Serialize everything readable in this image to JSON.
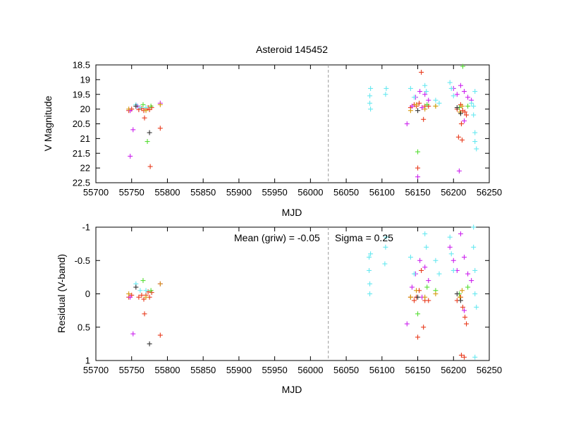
{
  "chart_data": [
    {
      "type": "scatter",
      "title": "Asteroid 145452",
      "xlabel": "MJD",
      "ylabel": "V Magnitude",
      "xlim": [
        55700,
        56250
      ],
      "ylim": [
        18.5,
        22.5
      ],
      "y_inverted": true,
      "xticks": [
        55700,
        55750,
        55800,
        55850,
        55900,
        55950,
        56000,
        56050,
        56100,
        56150,
        56200,
        56250
      ],
      "xtick_labels": [
        "55700",
        "55750",
        "55800",
        "55850",
        "55900",
        "55950",
        "56000",
        "56050",
        "56100",
        "56150",
        "56200",
        "56250"
      ],
      "yticks": [
        18.5,
        19,
        19.5,
        20,
        20.5,
        21,
        21.5,
        22,
        22.5
      ],
      "ytick_labels": [
        "18.5",
        "19",
        "19.5",
        "20",
        "20.5",
        "21",
        "21.5",
        "22",
        "22.5"
      ],
      "vertical_line": 56025,
      "series": [
        {
          "color": "#e83a1c",
          "points": [
            [
              55746,
              20.05
            ],
            [
              55750,
              20.0
            ],
            [
              55760,
              20.02
            ],
            [
              55764,
              19.98
            ],
            [
              55767,
              20.05
            ],
            [
              55770,
              20.0
            ],
            [
              55773,
              19.95
            ],
            [
              55775,
              20.02
            ],
            [
              55778,
              19.95
            ],
            [
              55768,
              20.3
            ],
            [
              55790,
              20.65
            ],
            [
              55776,
              21.95
            ],
            [
              56140,
              19.95
            ],
            [
              56145,
              19.85
            ],
            [
              56148,
              19.9
            ],
            [
              56152,
              19.8
            ],
            [
              56155,
              18.75
            ],
            [
              56160,
              19.9
            ],
            [
              56165,
              19.9
            ],
            [
              56158,
              20.35
            ],
            [
              56150,
              22.0
            ],
            [
              56205,
              20.0
            ],
            [
              56210,
              19.85
            ],
            [
              56213,
              20.05
            ],
            [
              56216,
              20.1
            ],
            [
              56218,
              20.2
            ],
            [
              56211,
              20.5
            ],
            [
              56207,
              20.95
            ],
            [
              56212,
              21.05
            ]
          ]
        },
        {
          "color": "#cc22ee",
          "points": [
            [
              55748,
              20.05
            ],
            [
              55752,
              20.7
            ],
            [
              55748,
              21.6
            ],
            [
              55758,
              19.9
            ],
            [
              55790,
              19.8
            ],
            [
              56135,
              20.5
            ],
            [
              56142,
              19.9
            ],
            [
              56147,
              19.6
            ],
            [
              56153,
              19.4
            ],
            [
              56156,
              19.95
            ],
            [
              56160,
              19.5
            ],
            [
              56165,
              19.7
            ],
            [
              56150,
              22.3
            ],
            [
              56200,
              19.3
            ],
            [
              56205,
              19.5
            ],
            [
              56210,
              19.2
            ],
            [
              56215,
              19.4
            ],
            [
              56220,
              19.6
            ],
            [
              56225,
              19.7
            ],
            [
              56208,
              22.1
            ],
            [
              56215,
              20.4
            ]
          ]
        },
        {
          "color": "#55dd33",
          "points": [
            [
              55766,
              19.85
            ],
            [
              55772,
              21.1
            ],
            [
              55777,
              19.9
            ],
            [
              56150,
              21.45
            ],
            [
              56163,
              19.85
            ],
            [
              56175,
              19.9
            ],
            [
              56213,
              18.55
            ],
            [
              56208,
              19.95
            ],
            [
              56220,
              19.9
            ]
          ]
        },
        {
          "color": "#66e8f0",
          "points": [
            [
              55756,
              19.85
            ],
            [
              55762,
              19.95
            ],
            [
              55770,
              19.95
            ],
            [
              56083,
              19.55
            ],
            [
              56083,
              19.8
            ],
            [
              56084,
              20.0
            ],
            [
              56084,
              19.3
            ],
            [
              56105,
              19.5
            ],
            [
              56106,
              19.3
            ],
            [
              56140,
              19.3
            ],
            [
              56145,
              19.6
            ],
            [
              56160,
              19.2
            ],
            [
              56162,
              19.4
            ],
            [
              56175,
              19.7
            ],
            [
              56180,
              19.8
            ],
            [
              56195,
              19.1
            ],
            [
              56197,
              19.3
            ],
            [
              56200,
              19.55
            ],
            [
              56225,
              19.8
            ],
            [
              56228,
              19.9
            ],
            [
              56228,
              20.2
            ],
            [
              56230,
              20.8
            ],
            [
              56230,
              21.1
            ],
            [
              56232,
              21.35
            ],
            [
              56230,
              19.4
            ]
          ]
        },
        {
          "color": "#d69a10",
          "points": [
            [
              55746,
              20.0
            ],
            [
              55770,
              20.05
            ],
            [
              55790,
              19.85
            ],
            [
              56140,
              20.05
            ],
            [
              56148,
              19.85
            ],
            [
              56160,
              20.0
            ],
            [
              56175,
              19.9
            ],
            [
              56209,
              20.1
            ],
            [
              56212,
              19.9
            ]
          ]
        },
        {
          "color": "#333333",
          "points": [
            [
              55775,
              20.8
            ],
            [
              55756,
              19.9
            ],
            [
              56150,
              20.05
            ],
            [
              56205,
              19.95
            ],
            [
              56210,
              20.15
            ]
          ]
        }
      ]
    },
    {
      "type": "scatter",
      "title": "",
      "xlabel": "MJD",
      "ylabel": "Residual (V-band)",
      "xlim": [
        55700,
        56250
      ],
      "ylim": [
        -1,
        1
      ],
      "y_inverted": true,
      "xticks": [
        55700,
        55750,
        55800,
        55850,
        55900,
        55950,
        56000,
        56050,
        56100,
        56150,
        56200,
        56250
      ],
      "xtick_labels": [
        "55700",
        "55750",
        "55800",
        "55850",
        "55900",
        "55950",
        "56000",
        "56050",
        "56100",
        "56150",
        "56200",
        "56250"
      ],
      "yticks": [
        -1,
        -0.5,
        0,
        0.5,
        1
      ],
      "ytick_labels": [
        "-1",
        "-0.5",
        "0",
        "0.5",
        "1"
      ],
      "vertical_line": 56025,
      "annotations": {
        "mean": "Mean (griw) = -0.05",
        "sigma": "Sigma =  0.25"
      },
      "series": [
        {
          "color": "#e83a1c",
          "points": [
            [
              55746,
              0.05
            ],
            [
              55750,
              0.02
            ],
            [
              55760,
              0.05
            ],
            [
              55764,
              0.02
            ],
            [
              55767,
              0.08
            ],
            [
              55770,
              0.02
            ],
            [
              55773,
              -0.03
            ],
            [
              55775,
              0.05
            ],
            [
              55778,
              -0.02
            ],
            [
              55768,
              0.3
            ],
            [
              55790,
              0.62
            ],
            [
              56140,
              0.05
            ],
            [
              56145,
              0.1
            ],
            [
              56148,
              0.05
            ],
            [
              56152,
              -0.05
            ],
            [
              56155,
              -0.35
            ],
            [
              56160,
              0.1
            ],
            [
              56165,
              0.1
            ],
            [
              56158,
              0.5
            ],
            [
              56150,
              0.65
            ],
            [
              56205,
              0.1
            ],
            [
              56210,
              0.05
            ],
            [
              56213,
              0.2
            ],
            [
              56216,
              0.35
            ],
            [
              56218,
              0.45
            ],
            [
              56211,
              0.92
            ],
            [
              56215,
              0.95
            ]
          ]
        },
        {
          "color": "#cc22ee",
          "points": [
            [
              55748,
              0.05
            ],
            [
              55752,
              0.6
            ],
            [
              55790,
              -0.15
            ],
            [
              56135,
              0.45
            ],
            [
              56142,
              -0.1
            ],
            [
              56147,
              -0.3
            ],
            [
              56153,
              -0.5
            ],
            [
              56156,
              0.05
            ],
            [
              56160,
              -0.4
            ],
            [
              56165,
              -0.2
            ],
            [
              56195,
              -0.7
            ],
            [
              56200,
              -0.5
            ],
            [
              56205,
              -0.35
            ],
            [
              56210,
              -0.9
            ],
            [
              56215,
              -0.55
            ],
            [
              56220,
              -0.3
            ],
            [
              56225,
              -0.2
            ],
            [
              56215,
              0.25
            ]
          ]
        },
        {
          "color": "#55dd33",
          "points": [
            [
              55766,
              -0.2
            ],
            [
              55777,
              -0.05
            ],
            [
              56150,
              0.3
            ],
            [
              56163,
              -0.1
            ],
            [
              56175,
              -0.05
            ],
            [
              56208,
              0.0
            ],
            [
              56220,
              -0.1
            ]
          ]
        },
        {
          "color": "#66e8f0",
          "points": [
            [
              55756,
              -0.15
            ],
            [
              55762,
              -0.05
            ],
            [
              55770,
              -0.05
            ],
            [
              56082,
              -0.55
            ],
            [
              56082,
              -0.35
            ],
            [
              56083,
              -0.15
            ],
            [
              56083,
              0.0
            ],
            [
              56084,
              -0.6
            ],
            [
              56104,
              -0.45
            ],
            [
              56105,
              -0.7
            ],
            [
              56106,
              -0.85
            ],
            [
              56140,
              -0.55
            ],
            [
              56145,
              -0.3
            ],
            [
              56160,
              -0.9
            ],
            [
              56162,
              -0.7
            ],
            [
              56175,
              -0.5
            ],
            [
              56180,
              -0.3
            ],
            [
              56195,
              -0.85
            ],
            [
              56197,
              -0.6
            ],
            [
              56200,
              -0.35
            ],
            [
              56228,
              -1.0
            ],
            [
              56228,
              -0.7
            ],
            [
              56230,
              -0.35
            ],
            [
              56230,
              0.0
            ],
            [
              56232,
              0.2
            ],
            [
              56230,
              0.95
            ]
          ]
        },
        {
          "color": "#d69a10",
          "points": [
            [
              55746,
              0.0
            ],
            [
              55770,
              0.05
            ],
            [
              55790,
              -0.15
            ],
            [
              56140,
              0.05
            ],
            [
              56148,
              -0.05
            ],
            [
              56160,
              0.05
            ],
            [
              56175,
              0.0
            ],
            [
              56209,
              0.05
            ],
            [
              56212,
              -0.05
            ]
          ]
        },
        {
          "color": "#333333",
          "points": [
            [
              55775,
              0.75
            ],
            [
              55756,
              -0.1
            ],
            [
              56150,
              0.05
            ],
            [
              56205,
              0.0
            ],
            [
              56210,
              0.1
            ]
          ]
        }
      ]
    }
  ]
}
